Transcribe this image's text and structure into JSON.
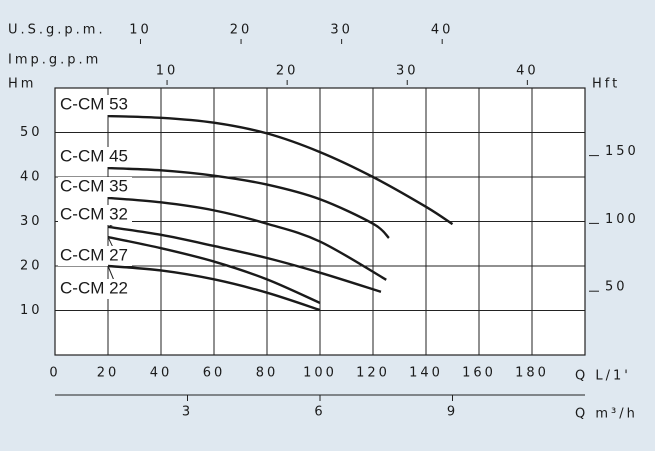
{
  "chart_data": {
    "type": "line",
    "xlabel": "Q L/1'",
    "ylabel": "Hm",
    "y2label": "Hft",
    "xlim": [
      0,
      200
    ],
    "xticks": [
      0,
      20,
      40,
      60,
      80,
      100,
      120,
      140,
      160,
      180
    ],
    "ylim": [
      0,
      60
    ],
    "yticks": [
      10,
      20,
      30,
      40,
      50
    ],
    "y2lim": [
      0,
      196.9
    ],
    "y2ticks": [
      50,
      100,
      150
    ],
    "grid": true,
    "color": "#1a1a1a",
    "top_axes": [
      {
        "label": "U.S.g.p.m.",
        "lim": [
          1.5,
          54.2
        ],
        "ticks": [
          10,
          20,
          30,
          40
        ]
      },
      {
        "label": "Imp.g.p.m",
        "lim": [
          0.67,
          44.8
        ],
        "ticks": [
          10,
          20,
          30,
          40
        ]
      }
    ],
    "bottom_axis2": {
      "label": "Q m³/h",
      "lim": [
        0,
        12
      ],
      "ticks": [
        3,
        6,
        9
      ]
    },
    "series": [
      {
        "name": "C-CM 53",
        "x": [
          20,
          40,
          60,
          80,
          100,
          120,
          140,
          150
        ],
        "values": [
          53.7,
          53.3,
          52.2,
          49.8,
          45.6,
          40,
          33.3,
          29.4
        ]
      },
      {
        "name": "C-CM 45",
        "x": [
          20,
          40,
          60,
          80,
          100,
          120,
          126
        ],
        "values": [
          42,
          41.5,
          40.3,
          38.3,
          35,
          29.5,
          26.3
        ]
      },
      {
        "name": "C-CM 35",
        "x": [
          20,
          40,
          60,
          80,
          100,
          125
        ],
        "values": [
          35.3,
          34.3,
          32.5,
          29.5,
          25.5,
          16.9
        ]
      },
      {
        "name": "C-CM 32",
        "x": [
          20,
          40,
          60,
          80,
          100,
          123
        ],
        "values": [
          28.8,
          27,
          24.5,
          21.8,
          18.5,
          14.2
        ]
      },
      {
        "name": "C-CM 27",
        "x": [
          20,
          40,
          60,
          80,
          100
        ],
        "values": [
          26.5,
          24,
          21,
          17,
          11.7
        ]
      },
      {
        "name": "C-CM 22",
        "x": [
          20,
          40,
          60,
          80,
          100
        ],
        "values": [
          20,
          19,
          17,
          14,
          10.1
        ]
      }
    ]
  }
}
